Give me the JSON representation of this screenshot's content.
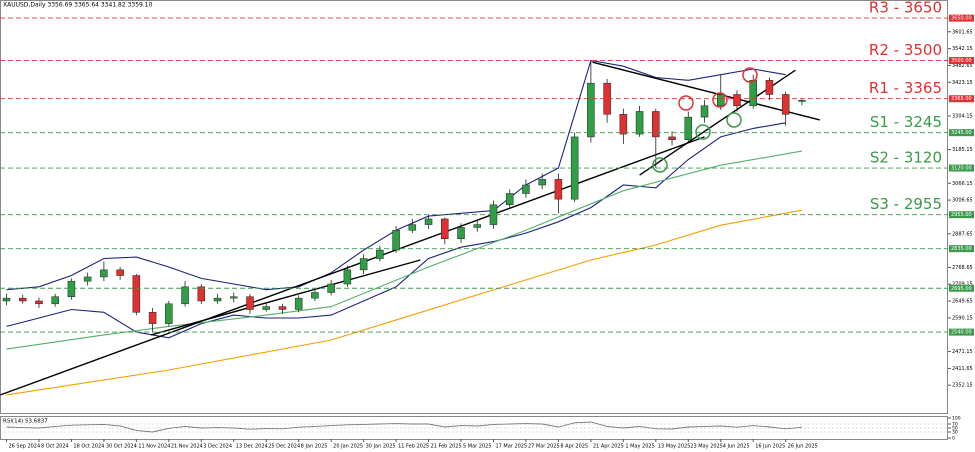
{
  "chart_data": {
    "type": "candlestick",
    "title": "XAUUSD,Daily  3356.69 3365.64 3341.82 3359.10",
    "xlim": [
      -0.4,
      58
    ],
    "xticks": [
      {
        "value": 0,
        "label": "26 Sep 2024"
      },
      {
        "value": 2,
        "label": "8 Oct 2024"
      },
      {
        "value": 4,
        "label": "18 Oct 2024"
      },
      {
        "value": 6,
        "label": "30 Oct 2024"
      },
      {
        "value": 8,
        "label": "11 Nov 2024"
      },
      {
        "value": 10,
        "label": "21 Nov 2024"
      },
      {
        "value": 12,
        "label": "3 Dec 2024"
      },
      {
        "value": 14,
        "label": "13 Dec 2024"
      },
      {
        "value": 16,
        "label": "25 Dec 2024"
      },
      {
        "value": 18,
        "label": "8 Jan 2025"
      },
      {
        "value": 20,
        "label": "20 Jan 2025"
      },
      {
        "value": 22,
        "label": "30 Jan 2025"
      },
      {
        "value": 24,
        "label": "11 Feb 2025"
      },
      {
        "value": 26,
        "label": "21 Feb 2025"
      },
      {
        "value": 28,
        "label": "5 Mar 2025"
      },
      {
        "value": 30,
        "label": "17 Mar 2025"
      },
      {
        "value": 32,
        "label": "27 Mar 2025"
      },
      {
        "value": 34,
        "label": "8 Apr 2025"
      },
      {
        "value": 36,
        "label": "21 Apr 2025"
      },
      {
        "value": 38,
        "label": "1 May 2025"
      },
      {
        "value": 40,
        "label": "13 May 2025"
      },
      {
        "value": 42,
        "label": "23 May 2025"
      },
      {
        "value": 44,
        "label": "4 Jun 2025"
      },
      {
        "value": 46,
        "label": "16 Jun 2025"
      },
      {
        "value": 48,
        "label": "26 Jun 2025"
      }
    ],
    "ylim": [
      2254,
      3714
    ],
    "yticks": [
      3601.65,
      3542.15,
      3482.65,
      3423.15,
      3304.15,
      3185.15,
      3066.15,
      3006.65,
      2887.65,
      2768.65,
      2709.15,
      2649.65,
      2590.15,
      2471.15,
      2411.65,
      2352.15
    ],
    "up_color": "#2f9e44",
    "down_color": "#e03131",
    "open": [
      2650,
      2660,
      2650,
      2640,
      2665,
      2720,
      2735,
      2760,
      2740,
      2610,
      2570,
      2640,
      2700,
      2650,
      2660,
      2665,
      2620,
      2630,
      2620,
      2660,
      2680,
      2710,
      2760,
      2800,
      2830,
      2900,
      2920,
      2940,
      2870,
      2910,
      2920,
      2990,
      3030,
      3060,
      3080,
      3010,
      3230,
      3420,
      3310,
      3240,
      3320,
      3230,
      3220,
      3300,
      3340,
      3380,
      3340,
      3430,
      3380,
      3356.69
    ],
    "high": [
      2675,
      2672,
      2662,
      2675,
      2730,
      2750,
      2790,
      2770,
      2745,
      2625,
      2650,
      2720,
      2710,
      2675,
      2680,
      2675,
      2645,
      2640,
      2670,
      2690,
      2725,
      2775,
      2815,
      2845,
      2915,
      2940,
      2955,
      2945,
      2925,
      2935,
      3005,
      3045,
      3080,
      3100,
      3100,
      3245,
      3500,
      3435,
      3330,
      3340,
      3330,
      3250,
      3320,
      3360,
      3450,
      3395,
      3450,
      3440,
      3390,
      3365.64
    ],
    "low": [
      2635,
      2640,
      2625,
      2630,
      2655,
      2705,
      2720,
      2725,
      2600,
      2540,
      2560,
      2630,
      2640,
      2640,
      2645,
      2605,
      2612,
      2605,
      2610,
      2650,
      2670,
      2700,
      2745,
      2790,
      2820,
      2890,
      2905,
      2850,
      2855,
      2895,
      2905,
      2975,
      3015,
      3045,
      2960,
      3000,
      3210,
      3280,
      3205,
      3230,
      3120,
      3200,
      3210,
      3280,
      3325,
      3320,
      3330,
      3360,
      3270,
      3341.82
    ],
    "close": [
      2660,
      2650,
      2640,
      2665,
      2720,
      2735,
      2760,
      2740,
      2610,
      2570,
      2640,
      2700,
      2650,
      2660,
      2665,
      2620,
      2630,
      2620,
      2660,
      2680,
      2710,
      2760,
      2800,
      2830,
      2900,
      2920,
      2940,
      2870,
      2910,
      2920,
      2990,
      3030,
      3060,
      3080,
      3010,
      3230,
      3420,
      3310,
      3240,
      3320,
      3230,
      3220,
      3300,
      3340,
      3380,
      3340,
      3430,
      3380,
      3310,
      3359.1
    ],
    "lines": [
      {
        "color": "#1a237e",
        "x": [
          0,
          2,
          4,
          6,
          8,
          10,
          12,
          14,
          16,
          18,
          20,
          22,
          24,
          26,
          28,
          30,
          32,
          34,
          36,
          38,
          40,
          42,
          44,
          46,
          48
        ],
        "values": [
          2690,
          2700,
          2740,
          2800,
          2805,
          2770,
          2730,
          2710,
          2690,
          2700,
          2750,
          2830,
          2900,
          2950,
          2960,
          2970,
          3060,
          3120,
          3500,
          3480,
          3440,
          3430,
          3450,
          3470,
          3450
        ]
      },
      {
        "color": "#1a237e",
        "x": [
          0,
          2,
          4,
          6,
          8,
          10,
          12,
          14,
          16,
          18,
          20,
          22,
          24,
          26,
          28,
          30,
          32,
          34,
          36,
          38,
          40,
          42,
          44,
          46,
          48
        ],
        "values": [
          2560,
          2590,
          2620,
          2610,
          2540,
          2520,
          2570,
          2600,
          2590,
          2590,
          2600,
          2650,
          2700,
          2800,
          2840,
          2860,
          2890,
          2930,
          2980,
          3060,
          3050,
          3150,
          3230,
          3260,
          3280
        ]
      },
      {
        "color": "#52b06a",
        "x": [
          0,
          6,
          10,
          16,
          20,
          26,
          32,
          38,
          44,
          49
        ],
        "values": [
          2480,
          2530,
          2560,
          2600,
          2630,
          2770,
          2900,
          3040,
          3130,
          3180
        ]
      },
      {
        "color": "#f59f00",
        "x": [
          0,
          10,
          20,
          30,
          36,
          40,
          44,
          49
        ],
        "values": [
          2318,
          2406,
          2512,
          2689,
          2795,
          2848,
          2918,
          2971
        ]
      },
      {
        "color": "#000000",
        "x": [
          -0.37,
          43
        ],
        "values": [
          2318,
          3230
        ]
      },
      {
        "color": "#000000",
        "x": [
          8.9,
          25.5
        ],
        "values": [
          2530,
          2795
        ]
      },
      {
        "color": "#000000",
        "x": [
          36.1,
          50.1
        ],
        "values": [
          3494,
          3290
        ]
      },
      {
        "color": "#000000",
        "x": [
          39,
          48.6
        ],
        "values": [
          3095,
          3466
        ]
      }
    ],
    "level_colors": {
      "resistance": "#e03131",
      "support": "#3a9a4a"
    },
    "levels": [
      {
        "value": 3650,
        "label": "R3 - 3650",
        "tag": "3650.00",
        "kind": "resistance"
      },
      {
        "value": 3500,
        "label": "R2 - 3500",
        "tag": "3500.00",
        "kind": "resistance"
      },
      {
        "value": 3365,
        "label": "R1 - 3365",
        "tag": "3365.00",
        "kind": "resistance"
      },
      {
        "value": 3245,
        "label": "S1 - 3245",
        "tag": "3245.00",
        "kind": "support"
      },
      {
        "value": 3120,
        "label": "S2 - 3120",
        "tag": "3120.00",
        "kind": "support"
      },
      {
        "value": 2955,
        "label": "S3 - 2955",
        "tag": "2955.00",
        "kind": "support"
      },
      {
        "value": 2835,
        "tag": "2835.00",
        "kind": "support"
      },
      {
        "value": 2695,
        "tag": "2695.00",
        "kind": "support"
      },
      {
        "value": 2540,
        "tag": "2540.00",
        "kind": "support"
      }
    ],
    "rsi": {
      "title": "RSI(14) 53.6837",
      "color": "#7a7a7a",
      "ylim": [
        0,
        100
      ],
      "yticks": [
        100,
        70,
        50,
        30,
        0
      ],
      "values": [
        55,
        52,
        50,
        58,
        64,
        66,
        68,
        60,
        38,
        30,
        48,
        58,
        50,
        52,
        50,
        44,
        47,
        46,
        54,
        58,
        62,
        66,
        68,
        70,
        72,
        70,
        70,
        55,
        62,
        60,
        68,
        70,
        72,
        70,
        55,
        76,
        80,
        58,
        50,
        58,
        46,
        45,
        55,
        58,
        60,
        54,
        62,
        55,
        46,
        53.6837
      ]
    }
  }
}
